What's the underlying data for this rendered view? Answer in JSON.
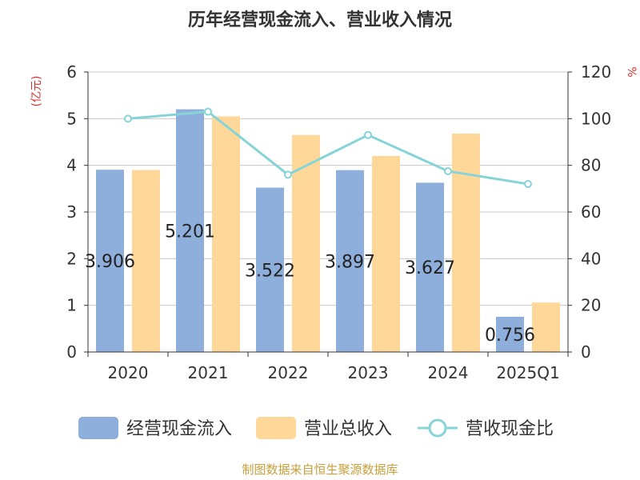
{
  "chart_data": {
    "type": "bar",
    "title": "历年经营现金流入、营业收入情况",
    "categories": [
      "2020",
      "2021",
      "2022",
      "2023",
      "2024",
      "2025Q1"
    ],
    "series": [
      {
        "name": "经营现金流入",
        "kind": "bar",
        "axis": "left",
        "color": "#8eafdc",
        "values": [
          3.906,
          5.201,
          3.522,
          3.897,
          3.627,
          0.756
        ],
        "labels": [
          "3.906",
          "5.201",
          "3.522",
          "3.897",
          "3.627",
          "0.756"
        ]
      },
      {
        "name": "营业总收入",
        "kind": "bar",
        "axis": "left",
        "color": "#ffd799",
        "values": [
          3.9,
          5.05,
          4.65,
          4.2,
          4.68,
          1.06
        ]
      },
      {
        "name": "营收现金比",
        "kind": "line",
        "axis": "right",
        "color": "#86d4d7",
        "values": [
          100,
          103,
          76,
          93,
          77.5,
          72
        ]
      }
    ],
    "y_left": {
      "unit": "(亿元)",
      "min": 0,
      "max": 6,
      "ticks": [
        "0",
        "1",
        "2",
        "3",
        "4",
        "5",
        "6"
      ]
    },
    "y_right": {
      "unit": "%",
      "min": 0,
      "max": 120,
      "ticks": [
        "0",
        "20",
        "40",
        "60",
        "80",
        "100",
        "120"
      ]
    },
    "grid": true,
    "legend_position": "bottom"
  },
  "source_text": "制图数据来自恒生聚源数据库"
}
